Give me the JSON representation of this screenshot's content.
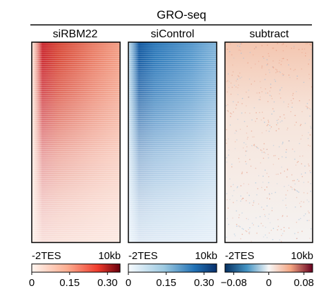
{
  "chart_data": {
    "type": "heatmap",
    "title": "GRO-seq",
    "panels": [
      {
        "name": "siRBM22",
        "x_tick_labels": [
          "-2TES",
          "10kb"
        ],
        "colorscale": "white-to-red",
        "colorbar": {
          "min": 0,
          "max": 0.35,
          "ticks": [
            0,
            0.15,
            0.3
          ],
          "tick_labels": [
            "0",
            "0.15",
            "0.30"
          ]
        },
        "pattern": "signal strongest near TES at top rows, fading downward and toward 10kb"
      },
      {
        "name": "siControl",
        "x_tick_labels": [
          "-2TES",
          "10kb"
        ],
        "colorscale": "white-to-blue",
        "colorbar": {
          "min": 0,
          "max": 0.35,
          "ticks": [
            0,
            0.15,
            0.3
          ],
          "tick_labels": [
            "0",
            "0.15",
            "0.30"
          ]
        },
        "pattern": "signal strongest near TES at top rows, fading downward and toward 10kb"
      },
      {
        "name": "subtract",
        "x_tick_labels": [
          "-2TES",
          "10kb"
        ],
        "colorscale": "blue-white-red (diverging)",
        "colorbar": {
          "min": -0.1,
          "max": 0.1,
          "ticks": [
            -0.08,
            0,
            0.08
          ],
          "tick_labels": [
            "−0.08",
            "0",
            "0.08"
          ]
        },
        "pattern": "mostly near zero with weak positive (red) signal in upper rows"
      }
    ]
  },
  "colors": {
    "red_high": "#a50f15",
    "red_mid": "#ef6548",
    "blue_high": "#08306b",
    "blue_mid": "#4292c6",
    "neutral": "#f7f7f7"
  }
}
